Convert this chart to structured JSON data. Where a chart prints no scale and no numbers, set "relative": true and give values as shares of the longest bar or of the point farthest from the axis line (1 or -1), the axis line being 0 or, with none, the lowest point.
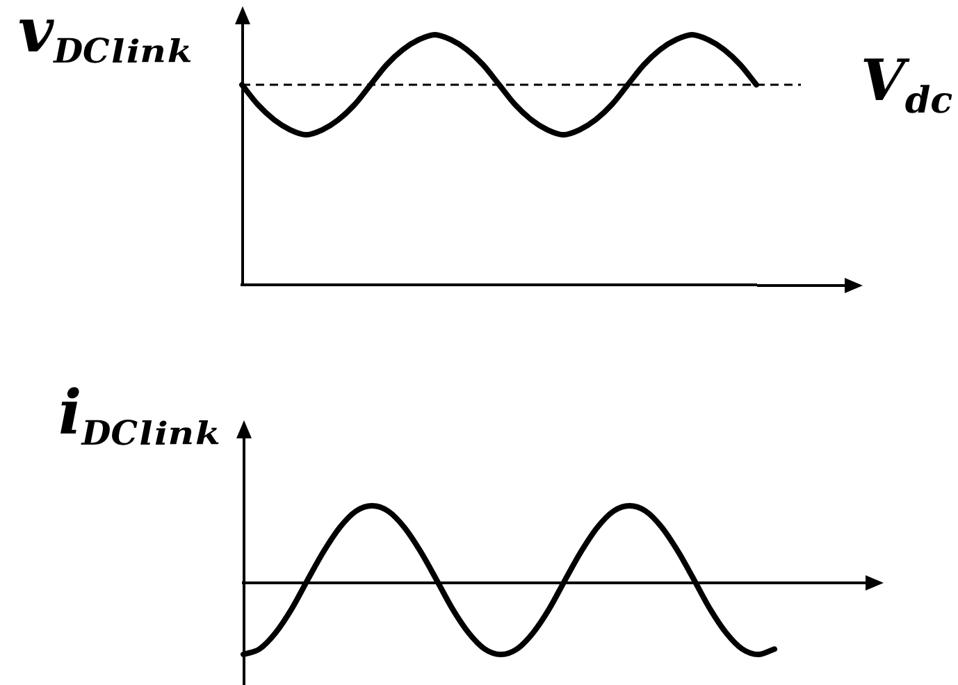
{
  "chart_data": [
    {
      "type": "line",
      "relative": true,
      "ylabel": "v$_{DCₗᵢₙₖ}$",
      "color": "#000000",
      "categories": [
        null,
        null,
        null,
        null,
        null,
        null,
        null,
        null,
        null,
        null,
        null,
        null,
        null,
        null,
        null,
        null,
        null,
        null,
        null,
        null,
        null,
        null,
        null,
        null,
        null,
        null,
        null,
        null,
        null,
        null,
        null,
        null,
        null
      ],
      "values": [
        0.8,
        0.72,
        0.66,
        0.62,
        0.6,
        0.62,
        0.66,
        0.72,
        0.8,
        0.88,
        0.94,
        0.98,
        1,
        0.98,
        0.94,
        0.88,
        0.8,
        0.72,
        0.66,
        0.62,
        0.6,
        0.62,
        0.66,
        0.72,
        0.8,
        0.88,
        0.94,
        0.98,
        1,
        0.98,
        0.94,
        0.88,
        0.8
      ],
      "ref_lines": [
        {
          "axis": "y",
          "value": 0.8,
          "label": "V$_{dc}$",
          "line_style": "dashed",
          "color": "#000000"
        }
      ]
    },
    {
      "type": "line",
      "relative": true,
      "ylabel": "i$_{DCₗᵢₙₖ}$",
      "color": "#000000",
      "categories": [
        null,
        null,
        null,
        null,
        null,
        null,
        null,
        null,
        null,
        null,
        null,
        null,
        null,
        null,
        null,
        null,
        null,
        null,
        null,
        null,
        null,
        null,
        null,
        null,
        null,
        null,
        null,
        null,
        null,
        null,
        null,
        null,
        null,
        null
      ],
      "values": [
        -0.93,
        -0.86,
        -0.65,
        -0.34,
        0.04,
        0.41,
        0.72,
        0.93,
        1,
        0.93,
        0.72,
        0.41,
        0.04,
        -0.34,
        -0.65,
        -0.86,
        -0.93,
        -0.86,
        -0.65,
        -0.34,
        0.04,
        0.41,
        0.72,
        0.93,
        1,
        0.93,
        0.72,
        0.41,
        0.04,
        -0.34,
        -0.65,
        -0.86,
        -0.93,
        -0.86
      ]
    }
  ]
}
